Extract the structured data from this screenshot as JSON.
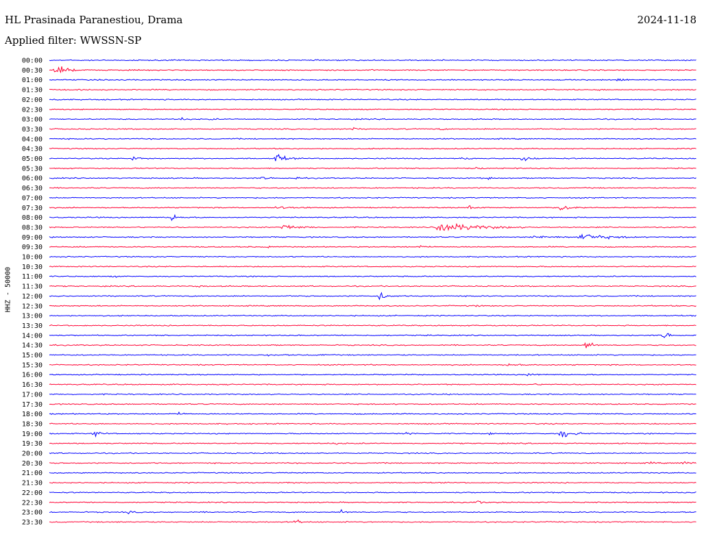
{
  "header": {
    "station": "HL Prasinada Paranestiou, Drama",
    "date": "2024-11-18",
    "filter": "Applied filter: WWSSN-SP",
    "channel": "HHZ - 50000"
  },
  "colors": {
    "even_trace": "#0000ff",
    "odd_trace": "#ff0033",
    "background": "#ffffff"
  },
  "chart_data": {
    "type": "helicorder",
    "title": "HL Prasinada Paranestiou, Drama",
    "date": "2024-11-18",
    "channel": "HHZ - 50000",
    "rows": [
      "00:00",
      "00:30",
      "01:00",
      "01:30",
      "02:00",
      "02:30",
      "03:00",
      "03:30",
      "04:00",
      "04:30",
      "05:00",
      "05:30",
      "06:00",
      "06:30",
      "07:00",
      "07:30",
      "08:00",
      "08:30",
      "09:00",
      "09:30",
      "10:00",
      "10:30",
      "11:00",
      "11:30",
      "12:00",
      "12:30",
      "13:00",
      "13:30",
      "14:00",
      "14:30",
      "15:00",
      "15:30",
      "16:00",
      "16:30",
      "17:00",
      "17:30",
      "18:00",
      "18:30",
      "19:00",
      "19:30",
      "20:00",
      "20:30",
      "21:00",
      "21:30",
      "22:00",
      "22:30",
      "23:00",
      "23:30"
    ],
    "events": [
      {
        "row": "00:30",
        "t": 0.01,
        "amp": 1.0,
        "dur": 0.04
      },
      {
        "row": "00:30",
        "t": 0.17,
        "amp": 0.15,
        "dur": 0.02
      },
      {
        "row": "00:30",
        "t": 0.5,
        "amp": 0.12,
        "dur": 0.01
      },
      {
        "row": "01:00",
        "t": 0.88,
        "amp": 0.35,
        "dur": 0.02
      },
      {
        "row": "01:30",
        "t": 0.77,
        "amp": 0.12,
        "dur": 0.02
      },
      {
        "row": "01:30",
        "t": 0.85,
        "amp": 0.12,
        "dur": 0.01
      },
      {
        "row": "02:00",
        "t": 0.01,
        "amp": 0.12,
        "dur": 0.02
      },
      {
        "row": "03:00",
        "t": 0.2,
        "amp": 0.35,
        "dur": 0.02
      },
      {
        "row": "03:00",
        "t": 0.25,
        "amp": 0.2,
        "dur": 0.01
      },
      {
        "row": "03:30",
        "t": 0.18,
        "amp": 0.2,
        "dur": 0.01
      },
      {
        "row": "03:30",
        "t": 0.44,
        "amp": 0.25,
        "dur": 0.01
      },
      {
        "row": "03:30",
        "t": 0.47,
        "amp": 0.3,
        "dur": 0.01
      },
      {
        "row": "03:30",
        "t": 0.6,
        "amp": 0.12,
        "dur": 0.03
      },
      {
        "row": "03:30",
        "t": 0.93,
        "amp": 0.12,
        "dur": 0.02
      },
      {
        "row": "05:00",
        "t": 0.13,
        "amp": 0.35,
        "dur": 0.03
      },
      {
        "row": "05:00",
        "t": 0.35,
        "amp": 1.0,
        "dur": 0.03
      },
      {
        "row": "05:00",
        "t": 0.64,
        "amp": 0.3,
        "dur": 0.02
      },
      {
        "row": "05:00",
        "t": 0.73,
        "amp": 0.6,
        "dur": 0.03
      },
      {
        "row": "05:30",
        "t": 0.66,
        "amp": 0.25,
        "dur": 0.01
      },
      {
        "row": "06:00",
        "t": 0.33,
        "amp": 0.25,
        "dur": 0.03
      },
      {
        "row": "06:00",
        "t": 0.38,
        "amp": 0.25,
        "dur": 0.01
      },
      {
        "row": "06:00",
        "t": 0.68,
        "amp": 0.35,
        "dur": 0.01
      },
      {
        "row": "07:30",
        "t": 0.35,
        "amp": 0.2,
        "dur": 0.09
      },
      {
        "row": "07:30",
        "t": 0.65,
        "amp": 0.5,
        "dur": 0.02
      },
      {
        "row": "07:30",
        "t": 0.79,
        "amp": 0.85,
        "dur": 0.04
      },
      {
        "row": "08:00",
        "t": 0.19,
        "amp": 0.8,
        "dur": 0.02
      },
      {
        "row": "08:30",
        "t": 0.36,
        "amp": 0.6,
        "dur": 0.06
      },
      {
        "row": "08:30",
        "t": 0.6,
        "amp": 1.0,
        "dur": 0.14
      },
      {
        "row": "09:00",
        "t": 0.75,
        "amp": 0.35,
        "dur": 0.06
      },
      {
        "row": "09:00",
        "t": 0.82,
        "amp": 0.8,
        "dur": 0.09
      },
      {
        "row": "09:30",
        "t": 0.34,
        "amp": 0.2,
        "dur": 0.01
      },
      {
        "row": "09:30",
        "t": 0.57,
        "amp": 0.35,
        "dur": 0.02
      },
      {
        "row": "11:00",
        "t": 0.1,
        "amp": 0.15,
        "dur": 0.01
      },
      {
        "row": "11:30",
        "t": 0.23,
        "amp": 0.2,
        "dur": 0.02
      },
      {
        "row": "12:00",
        "t": 0.51,
        "amp": 0.8,
        "dur": 0.03
      },
      {
        "row": "12:30",
        "t": 0.66,
        "amp": 0.2,
        "dur": 0.01
      },
      {
        "row": "14:00",
        "t": 0.95,
        "amp": 1.0,
        "dur": 0.02
      },
      {
        "row": "14:30",
        "t": 0.83,
        "amp": 1.0,
        "dur": 0.02
      },
      {
        "row": "15:00",
        "t": 0.34,
        "amp": 0.15,
        "dur": 0.03
      },
      {
        "row": "15:00",
        "t": 0.42,
        "amp": 0.15,
        "dur": 0.02
      },
      {
        "row": "15:30",
        "t": 0.71,
        "amp": 0.4,
        "dur": 0.03
      },
      {
        "row": "16:00",
        "t": 0.74,
        "amp": 0.4,
        "dur": 0.02
      },
      {
        "row": "16:30",
        "t": 0.74,
        "amp": 0.15,
        "dur": 0.03
      },
      {
        "row": "18:00",
        "t": 0.2,
        "amp": 0.2,
        "dur": 0.02
      },
      {
        "row": "19:00",
        "t": 0.07,
        "amp": 0.7,
        "dur": 0.02
      },
      {
        "row": "19:00",
        "t": 0.55,
        "amp": 0.35,
        "dur": 0.02
      },
      {
        "row": "19:00",
        "t": 0.68,
        "amp": 0.25,
        "dur": 0.01
      },
      {
        "row": "19:00",
        "t": 0.79,
        "amp": 1.0,
        "dur": 0.04
      },
      {
        "row": "19:30",
        "t": 0.44,
        "amp": 0.15,
        "dur": 0.03
      },
      {
        "row": "20:30",
        "t": 0.93,
        "amp": 0.15,
        "dur": 0.02
      },
      {
        "row": "20:30",
        "t": 0.98,
        "amp": 0.4,
        "dur": 0.02
      },
      {
        "row": "21:30",
        "t": 0.37,
        "amp": 0.15,
        "dur": 0.02
      },
      {
        "row": "22:30",
        "t": 0.66,
        "amp": 0.3,
        "dur": 0.03
      },
      {
        "row": "23:00",
        "t": 0.12,
        "amp": 0.25,
        "dur": 0.02
      },
      {
        "row": "23:00",
        "t": 0.45,
        "amp": 0.4,
        "dur": 0.02
      },
      {
        "row": "23:30",
        "t": 0.38,
        "amp": 0.5,
        "dur": 0.02
      }
    ]
  }
}
